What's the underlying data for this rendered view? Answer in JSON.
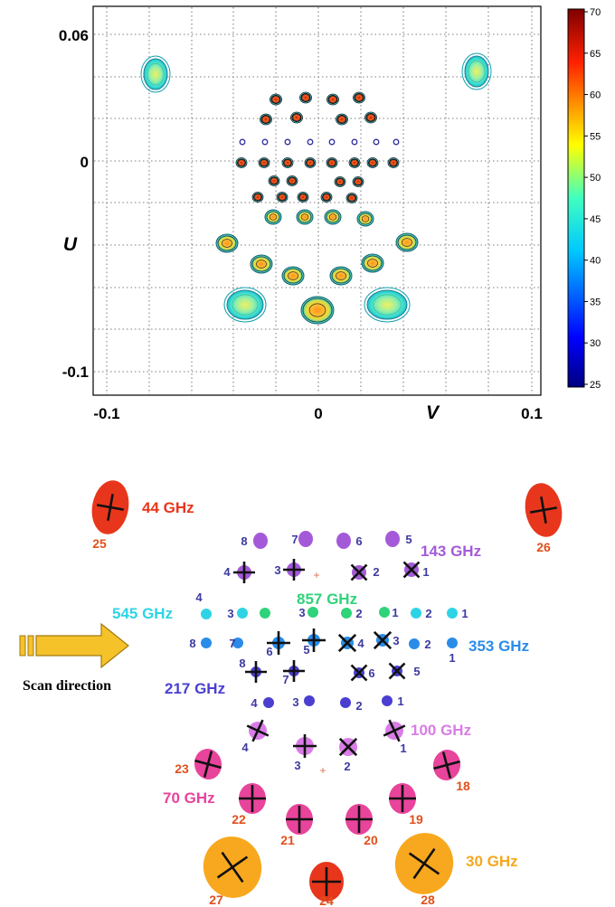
{
  "colors": {
    "band_44": "#e8361c",
    "band_30": "#f7a81e",
    "band_70": "#e8449b",
    "band_100": "#d97de6",
    "band_143": "#a45ad8",
    "band_217": "#4a3fd0",
    "band_353": "#2a8ce8",
    "band_545": "#2ed4e6",
    "band_857": "#2fd37a",
    "label_number_dark": "#3d3aa0",
    "label_number_red": "#e0501c",
    "scan_arrow": "#f6c22a"
  },
  "top_plot": {
    "y_axis_label": "U",
    "x_axis_label": "V",
    "y_ticks": [
      "0.06",
      "0",
      "-0.1"
    ],
    "x_ticks": [
      "-0.1",
      "0",
      "0.1"
    ],
    "colorbar_ticks": [
      "70",
      "65",
      "60",
      "55",
      "50",
      "45",
      "40",
      "35",
      "30",
      "25"
    ],
    "colorbar_range": [
      25,
      70
    ],
    "grid": true
  },
  "bottom_diagram": {
    "scan_direction_label": "Scan direction",
    "bands": {
      "b44": "44 GHz",
      "b30": "30 GHz",
      "b70": "70 GHz",
      "b100": "100 GHz",
      "b143": "143 GHz",
      "b217": "217 GHz",
      "b353": "353 GHz",
      "b545": "545 GHz",
      "b857": "857 GHz"
    },
    "horn_numbers": {
      "h25": "25",
      "h26": "26",
      "h27": "27",
      "h24": "24",
      "h28": "28",
      "h23": "23",
      "h22": "22",
      "h21": "21",
      "h20": "20",
      "h19": "19",
      "h18": "18",
      "b100_1": "1",
      "b100_2": "2",
      "b100_3": "3",
      "b100_4": "4",
      "b143_1": "1",
      "b143_2": "2",
      "b143_3": "3",
      "b143_4": "4",
      "b143_5": "5",
      "b143_6": "6",
      "b143_7": "7",
      "b143_8": "8",
      "b857_2": "2",
      "b857_3": "3",
      "b545_1": "1",
      "b545_2": "2",
      "b545_3": "3",
      "b545_4": "4",
      "b353_1": "1",
      "b353_2": "2",
      "b353_3": "3",
      "b353_4": "4",
      "b353_5": "5",
      "b353_6": "6",
      "b353_7": "7",
      "b353_8": "8",
      "b857_1": "1",
      "b217_1": "1",
      "b217_2": "2",
      "b217_3": "3",
      "b217_4": "4",
      "b217_5": "5",
      "b217_6": "6",
      "b217_7": "7",
      "b217_8": "8"
    }
  }
}
